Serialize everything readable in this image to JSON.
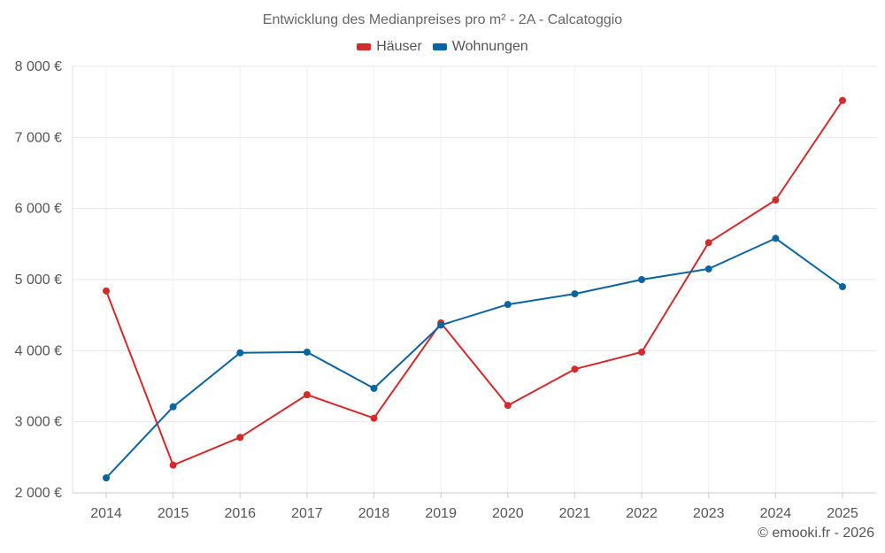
{
  "chart_data": {
    "type": "line",
    "title": "Entwicklung des Medianpreises pro m² - 2A - Calcatoggio",
    "x": [
      2014,
      2015,
      2016,
      2017,
      2018,
      2019,
      2020,
      2021,
      2022,
      2023,
      2024,
      2025
    ],
    "series": [
      {
        "name": "Häuser",
        "color": "#d42a2a",
        "values": [
          4840,
          2390,
          2780,
          3380,
          3050,
          4390,
          3230,
          3740,
          3980,
          5520,
          6120,
          7520
        ]
      },
      {
        "name": "Wohnungen",
        "color": "#0a64a0",
        "values": [
          2210,
          3210,
          3970,
          3980,
          3470,
          4360,
          4650,
          4800,
          5000,
          5150,
          5580,
          4900
        ]
      }
    ],
    "ylim": [
      2000,
      8000
    ],
    "yticks": [
      2000,
      3000,
      4000,
      5000,
      6000,
      7000,
      8000
    ],
    "ytick_labels": [
      "2 000 €",
      "3 000 €",
      "4 000 €",
      "5 000 €",
      "6 000 €",
      "7 000 €",
      "8 000 €"
    ],
    "xtick_labels": [
      "2014",
      "2015",
      "2016",
      "2017",
      "2018",
      "2019",
      "2020",
      "2021",
      "2022",
      "2023",
      "2024",
      "2025"
    ],
    "xlabel": "",
    "ylabel": "",
    "grid": true,
    "legend_position": "top-center"
  },
  "credit": "© emooki.fr - 2026"
}
